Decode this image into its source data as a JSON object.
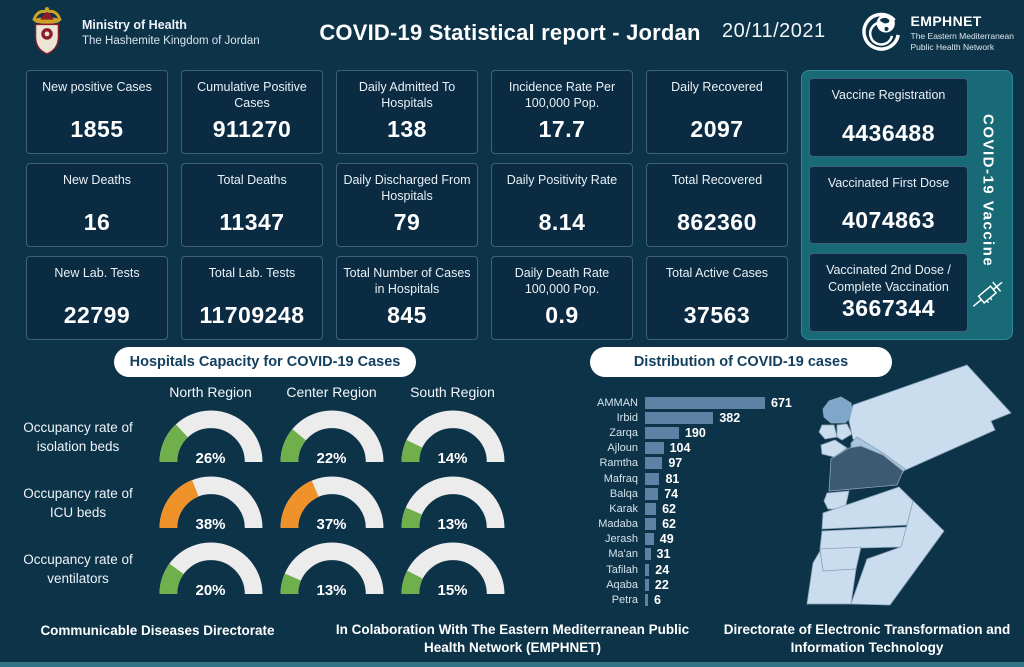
{
  "header": {
    "ministry_name": "Ministry of Health",
    "ministry_sub": "The Hashemite Kingdom of Jordan",
    "title": "COVID-19 Statistical report - Jordan",
    "date": "20/11/2021",
    "emphnet_name": "EMPHNET",
    "emphnet_sub1": "The Eastern Mediterranean",
    "emphnet_sub2": "Public Health Network"
  },
  "stats": [
    {
      "label": "New positive Cases",
      "value": "1855"
    },
    {
      "label": "Cumulative  Positive Cases",
      "value": "911270"
    },
    {
      "label": "Daily Admitted To Hospitals",
      "value": "138"
    },
    {
      "label": "Incidence Rate Per 100,000 Pop.",
      "value": "17.7"
    },
    {
      "label": "Daily Recovered",
      "value": "2097"
    },
    {
      "label": "New Deaths",
      "value": "16"
    },
    {
      "label": "Total Deaths",
      "value": "11347"
    },
    {
      "label": "Daily Discharged From Hospitals",
      "value": "79"
    },
    {
      "label": "Daily Positivity Rate",
      "value": "8.14"
    },
    {
      "label": "Total Recovered",
      "value": "862360"
    },
    {
      "label": "New Lab. Tests",
      "value": "22799"
    },
    {
      "label": "Total Lab. Tests",
      "value": "11709248"
    },
    {
      "label": "Total Number of Cases in Hospitals",
      "value": "845"
    },
    {
      "label": "Daily Death Rate 100,000 Pop.",
      "value": "0.9"
    },
    {
      "label": "Total Active Cases",
      "value": "37563"
    }
  ],
  "vaccine": {
    "panel_label": "COVID-19 Vaccine",
    "cards": [
      {
        "label": "Vaccine Registration",
        "value": "4436488"
      },
      {
        "label": "Vaccinated First Dose",
        "value": "4074863"
      },
      {
        "label": "Vaccinated 2nd Dose / Complete Vaccination",
        "value": "3667344"
      }
    ]
  },
  "chart_data": [
    {
      "type": "gauge-grid",
      "title": "Hospitals Capacity for COVID-19 Cases",
      "columns": [
        "North Region",
        "Center Region",
        "South Region"
      ],
      "unit": "%",
      "rows": [
        {
          "label": "Occupancy rate of isolation beds",
          "values": [
            26,
            22,
            14
          ],
          "colors": [
            "green",
            "green",
            "green"
          ]
        },
        {
          "label": "Occupancy rate of ICU beds",
          "values": [
            38,
            37,
            13
          ],
          "colors": [
            "orange",
            "orange",
            "green"
          ]
        },
        {
          "label": "Occupancy rate of ventilators",
          "values": [
            20,
            13,
            15
          ],
          "colors": [
            "green",
            "green",
            "green"
          ]
        }
      ],
      "gauge_range": [
        0,
        100
      ]
    },
    {
      "type": "bar",
      "title": "Distribution of COVID-19 cases",
      "orientation": "horizontal",
      "categories": [
        "AMMAN",
        "Irbid",
        "Zarqa",
        "Ajloun",
        "Ramtha",
        "Mafraq",
        "Balqa",
        "Karak",
        "Madaba",
        "Jerash",
        "Ma'an",
        "Tafilah",
        "Aqaba",
        "Petra"
      ],
      "values": [
        671,
        382,
        190,
        104,
        97,
        81,
        74,
        62,
        62,
        49,
        31,
        24,
        22,
        6
      ],
      "xlim": [
        0,
        671
      ],
      "value_labels": true
    },
    {
      "type": "choropleth",
      "regions": [
        {
          "name": "Irbid",
          "shade": "medium"
        },
        {
          "name": "Ajloun",
          "shade": "light"
        },
        {
          "name": "Jerash",
          "shade": "light"
        },
        {
          "name": "Mafraq",
          "shade": "light"
        },
        {
          "name": "Zarqa",
          "shade": "medium-light"
        },
        {
          "name": "Balqa",
          "shade": "light"
        },
        {
          "name": "Amman",
          "shade": "dark"
        },
        {
          "name": "Madaba",
          "shade": "light"
        },
        {
          "name": "Karak",
          "shade": "light"
        },
        {
          "name": "Tafilah",
          "shade": "light"
        },
        {
          "name": "Ma'an",
          "shade": "light"
        },
        {
          "name": "Petra",
          "shade": "light"
        },
        {
          "name": "Aqaba",
          "shade": "light"
        }
      ]
    }
  ],
  "footer": {
    "left": "Communicable Diseases Directorate",
    "center": "In Colaboration With The Eastern Mediterranean Public Health Network (EMPHNET)",
    "right": "Directorate of Electronic Transformation and  Information Technology"
  },
  "colors": {
    "background": "#0d3349",
    "card_bg": "#0a2b42",
    "teal_panel": "#186b76",
    "bar_fill": "#5d82a5",
    "gauge_green": "#6fb04d",
    "gauge_orange": "#f0922a",
    "gauge_track": "#ececec",
    "map_light": "#c9ddef",
    "map_medium": "#7fa7c9",
    "map_medium_light": "#a9c6e0",
    "map_dark": "#3d5a73",
    "pill_text": "#14405f"
  }
}
